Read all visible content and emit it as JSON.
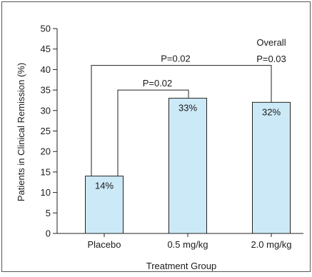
{
  "chart_data": {
    "type": "bar",
    "xlabel": "Treatment Group",
    "ylabel": "Patients in Clinical Remission (%)",
    "ylim": [
      0,
      50
    ],
    "yticks": [
      0,
      5,
      10,
      15,
      20,
      25,
      30,
      35,
      40,
      45,
      50
    ],
    "categories": [
      "Placebo",
      "0.5 mg/kg",
      "2.0 mg/kg"
    ],
    "values": [
      14,
      33,
      32
    ],
    "value_labels": [
      "14%",
      "33%",
      "32%"
    ],
    "bar_color": "#cce9f7",
    "grid": false,
    "annotations": [
      {
        "label": "P=0.02",
        "from": "Placebo",
        "to": "0.5 mg/kg",
        "level": 35
      },
      {
        "label": "P=0.02",
        "from": "Placebo",
        "to": "2.0 mg/kg",
        "level": 41
      },
      {
        "label": "Overall",
        "at": "2.0 mg/kg",
        "level": 46.5
      },
      {
        "label": "P=0.03",
        "at": "2.0 mg/kg",
        "level": 42.5
      }
    ]
  }
}
